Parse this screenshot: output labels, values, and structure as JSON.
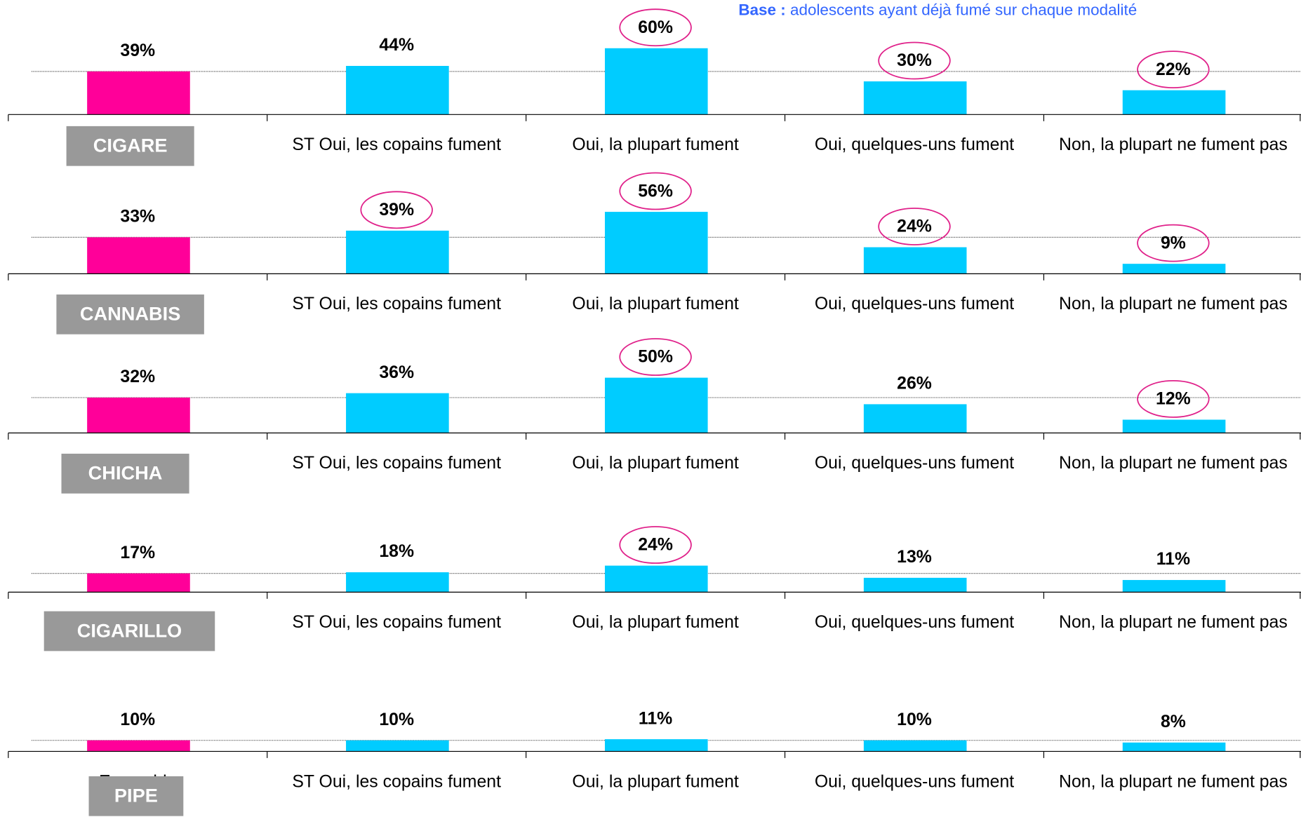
{
  "note": {
    "label": "Base :",
    "text": "adolescents ayant déjà fumé sur chaque modalité"
  },
  "chart_data": [
    {
      "type": "bar",
      "title": "CIGARE",
      "categories": [
        null,
        "ST Oui, les copains fument",
        "Oui, la plupart fument",
        "Oui, quelques-uns fument",
        "Non, la plupart ne fument pas"
      ],
      "values": [
        39,
        44,
        60,
        30,
        22
      ],
      "value_labels": [
        "39%",
        "44%",
        "60%",
        "30%",
        "22%"
      ],
      "colors": [
        "#ff0099",
        "#00ccff",
        "#00ccff",
        "#00ccff",
        "#00ccff"
      ],
      "circled": [
        false,
        false,
        true,
        true,
        true
      ]
    },
    {
      "type": "bar",
      "title": "CANNABIS",
      "categories": [
        null,
        "ST Oui, les copains fument",
        "Oui, la plupart fument",
        "Oui, quelques-uns fument",
        "Non, la plupart ne fument pas"
      ],
      "values": [
        33,
        39,
        56,
        24,
        9
      ],
      "value_labels": [
        "33%",
        "39%",
        "56%",
        "24%",
        "9%"
      ],
      "colors": [
        "#ff0099",
        "#00ccff",
        "#00ccff",
        "#00ccff",
        "#00ccff"
      ],
      "circled": [
        false,
        true,
        true,
        true,
        true
      ]
    },
    {
      "type": "bar",
      "title": "CHICHA",
      "categories": [
        null,
        "ST Oui, les copains fument",
        "Oui, la plupart fument",
        "Oui, quelques-uns fument",
        "Non, la plupart ne fument pas"
      ],
      "values": [
        32,
        36,
        50,
        26,
        12
      ],
      "value_labels": [
        "32%",
        "36%",
        "50%",
        "26%",
        "12%"
      ],
      "colors": [
        "#ff0099",
        "#00ccff",
        "#00ccff",
        "#00ccff",
        "#00ccff"
      ],
      "circled": [
        false,
        false,
        true,
        false,
        true
      ]
    },
    {
      "type": "bar",
      "title": "CIGARILLO",
      "categories": [
        null,
        "ST Oui, les copains fument",
        "Oui, la plupart fument",
        "Oui, quelques-uns fument",
        "Non, la plupart ne fument pas"
      ],
      "values": [
        17,
        18,
        24,
        13,
        11
      ],
      "value_labels": [
        "17%",
        "18%",
        "24%",
        "13%",
        "11%"
      ],
      "colors": [
        "#ff0099",
        "#00ccff",
        "#00ccff",
        "#00ccff",
        "#00ccff"
      ],
      "circled": [
        false,
        false,
        true,
        false,
        false
      ]
    },
    {
      "type": "bar",
      "title": "PIPE",
      "categories": [
        "Ensemble",
        "ST Oui, les copains fument",
        "Oui, la plupart fument",
        "Oui, quelques-uns fument",
        "Non, la plupart ne fument pas"
      ],
      "values": [
        10,
        10,
        11,
        10,
        8
      ],
      "value_labels": [
        "10%",
        "10%",
        "11%",
        "10%",
        "8%"
      ],
      "colors": [
        "#ff0099",
        "#00ccff",
        "#00ccff",
        "#00ccff",
        "#00ccff"
      ],
      "circled": [
        false,
        false,
        false,
        false,
        false
      ]
    }
  ]
}
